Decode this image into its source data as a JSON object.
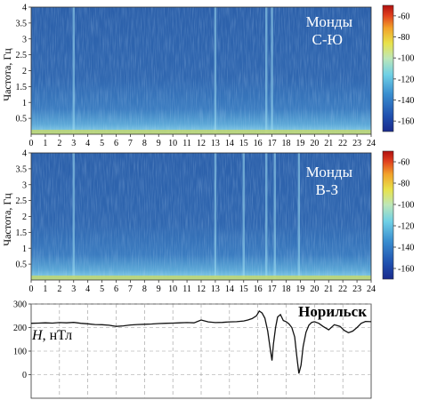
{
  "chart_data": [
    {
      "type": "heatmap",
      "name": "Монды С-Ю",
      "station": [
        "Монды",
        "С-Ю"
      ],
      "ylabel": "Частота, Гц",
      "x_ticks": [
        0,
        1,
        2,
        3,
        4,
        5,
        6,
        7,
        8,
        9,
        10,
        11,
        12,
        13,
        14,
        15,
        16,
        17,
        18,
        19,
        20,
        21,
        22,
        23,
        24
      ],
      "y_ticks": [
        "0.5",
        "1",
        "1.5",
        "2",
        "2.5",
        "3",
        "3.5",
        "4"
      ],
      "xlim": [
        0,
        24
      ],
      "ylim": [
        0,
        4
      ],
      "colorbar_ticks": [
        -60,
        -80,
        -100,
        -120,
        -140,
        -160
      ],
      "colorbar_range": [
        -170,
        -50
      ],
      "vertical_bursts_hours": [
        3,
        13,
        16.6,
        17.0
      ]
    },
    {
      "type": "heatmap",
      "name": "Монды В-З",
      "station": [
        "Монды",
        "В-З"
      ],
      "ylabel": "Частота, Гц",
      "x_ticks": [
        0,
        1,
        2,
        3,
        4,
        5,
        6,
        7,
        8,
        9,
        10,
        11,
        12,
        13,
        14,
        15,
        16,
        17,
        18,
        19,
        20,
        21,
        22,
        23,
        24
      ],
      "y_ticks": [
        "0.5",
        "1",
        "1.5",
        "2",
        "2.5",
        "3",
        "3.5",
        "4"
      ],
      "xlim": [
        0,
        24
      ],
      "ylim": [
        0,
        4
      ],
      "colorbar_ticks": [
        -60,
        -80,
        -100,
        -120,
        -140,
        -160
      ],
      "colorbar_range": [
        -170,
        -50
      ],
      "vertical_bursts_hours": [
        3,
        13,
        15,
        16.6,
        17.2,
        18.9
      ]
    },
    {
      "type": "line",
      "station": "Норильск",
      "ylabel_italic": "H",
      "ylabel_unit": ", нТл",
      "y_ticks": [
        "0",
        "100",
        "200",
        "300"
      ],
      "xlim": [
        0,
        24
      ],
      "ylim": [
        -100,
        300
      ],
      "grid": true,
      "series": [
        {
          "x": [
            0,
            0.5,
            1,
            1.5,
            2,
            2.5,
            3,
            3.5,
            4,
            4.5,
            5,
            5.5,
            6,
            6.5,
            7,
            7.5,
            8,
            8.5,
            9,
            9.5,
            10,
            10.5,
            11,
            11.5,
            12,
            12.5,
            13,
            13.5,
            14,
            14.5,
            15,
            15.3,
            15.6,
            15.9,
            16.1,
            16.3,
            16.5,
            16.7,
            16.85,
            17.0,
            17.1,
            17.25,
            17.4,
            17.6,
            17.8,
            18.0,
            18.2,
            18.4,
            18.6,
            18.75,
            18.9,
            19.05,
            19.2,
            19.4,
            19.6,
            19.8,
            20.0,
            20.3,
            20.6,
            21.0,
            21.4,
            21.8,
            22.1,
            22.4,
            22.7,
            23.0,
            23.3,
            23.6,
            24
          ],
          "y": [
            218,
            219,
            220,
            219,
            221,
            220,
            222,
            218,
            216,
            213,
            212,
            210,
            205,
            207,
            211,
            213,
            214,
            215,
            217,
            218,
            219,
            220,
            221,
            220,
            232,
            224,
            221,
            222,
            224,
            225,
            228,
            232,
            238,
            250,
            270,
            262,
            240,
            185,
            120,
            60,
            130,
            200,
            245,
            255,
            230,
            225,
            215,
            200,
            160,
            80,
            5,
            40,
            120,
            180,
            210,
            222,
            225,
            218,
            205,
            190,
            212,
            205,
            188,
            178,
            185,
            200,
            218,
            226,
            225
          ]
        }
      ]
    }
  ]
}
